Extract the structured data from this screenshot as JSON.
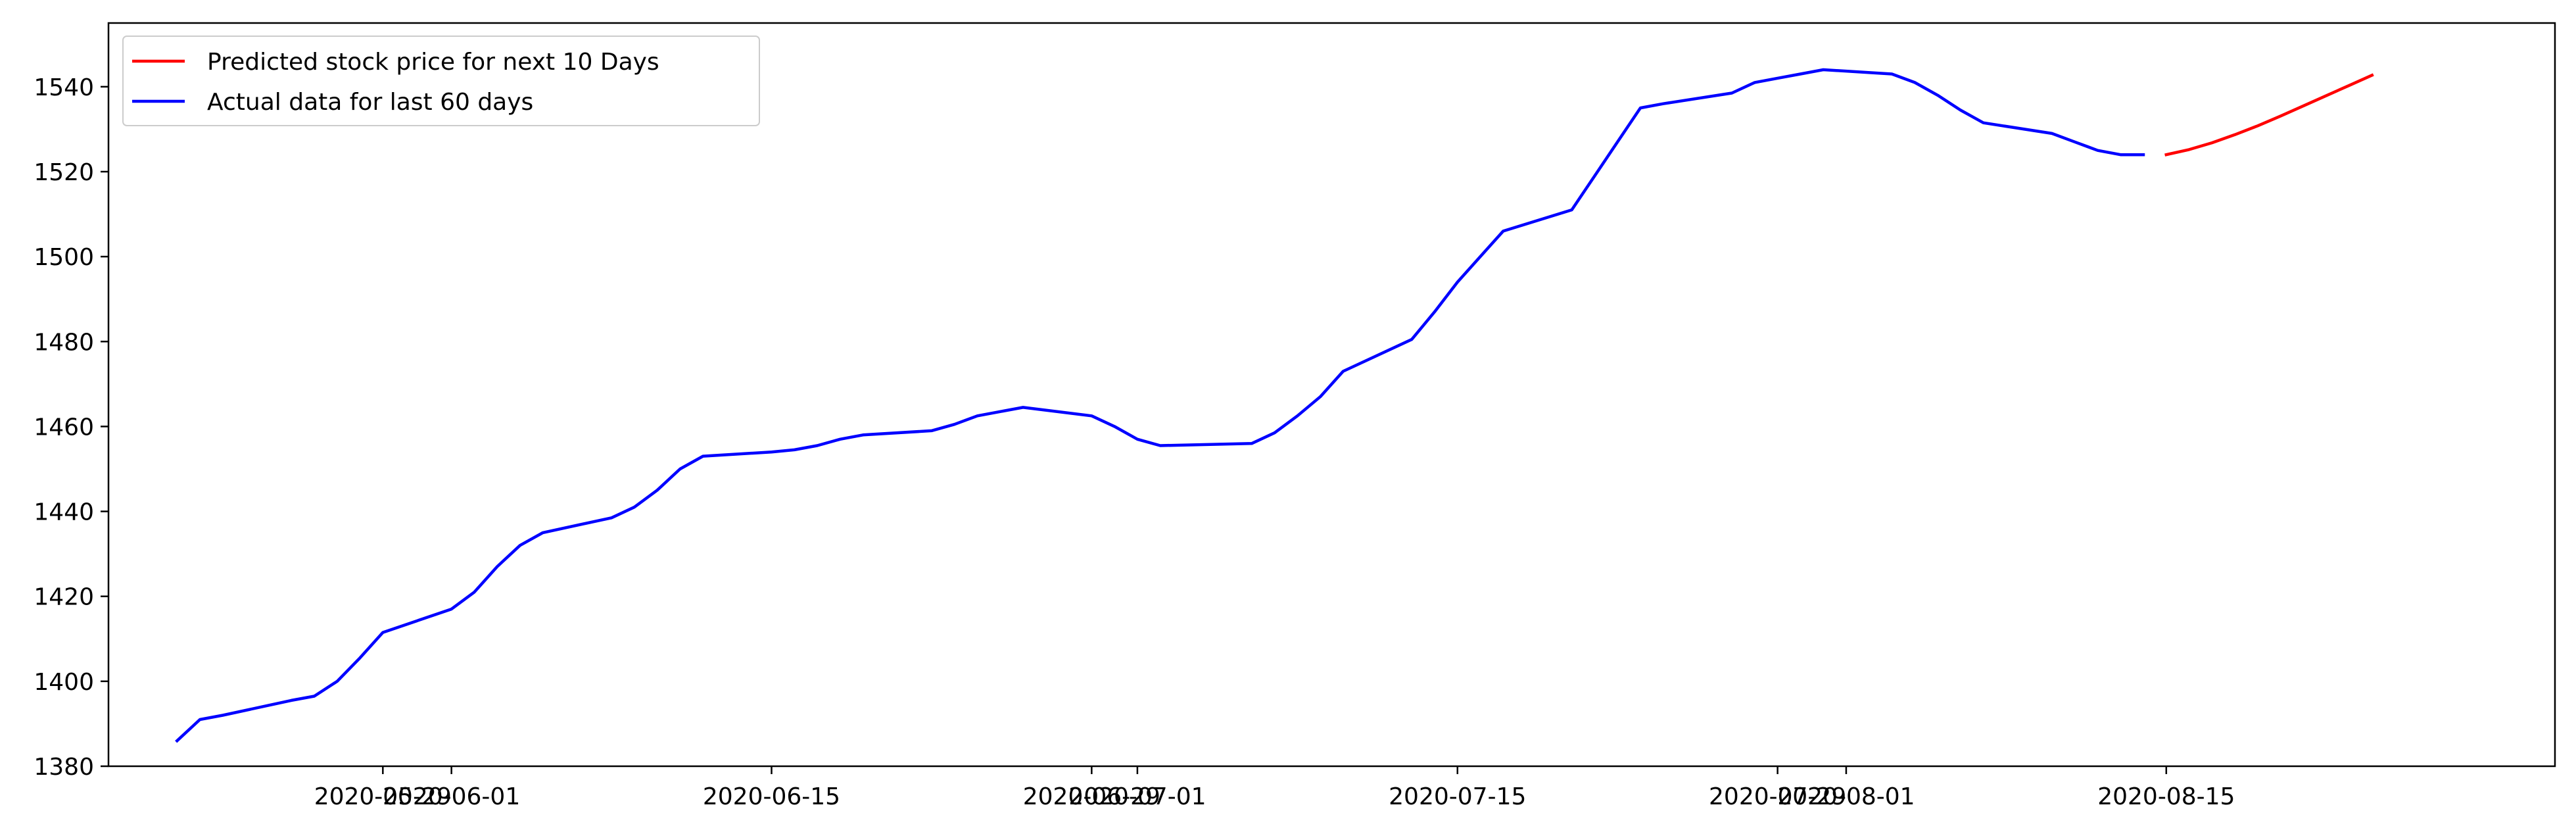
{
  "chart_data": {
    "type": "line",
    "title": "",
    "xlabel": "",
    "ylabel": "",
    "x_axis_type": "date",
    "xlim": [
      "2020-05-17",
      "2020-09-01"
    ],
    "ylim": [
      1380,
      1555
    ],
    "x_tick_labels": [
      "2020-05-29",
      "2020-06-01",
      "2020-06-15",
      "2020-06-29",
      "2020-07-01",
      "2020-07-15",
      "2020-07-29",
      "2020-08-01",
      "2020-08-15"
    ],
    "y_ticks": [
      1380,
      1400,
      1420,
      1440,
      1460,
      1480,
      1500,
      1520,
      1540
    ],
    "grid": false,
    "legend": {
      "placement": "upper left",
      "entries": [
        "Predicted stock price for next 10 Days",
        "Actual data for last 60 days"
      ]
    },
    "series": [
      {
        "name": "Predicted stock price for next 10 Days",
        "color": "#ff0000",
        "x": [
          "2020-08-15",
          "2020-08-16",
          "2020-08-17",
          "2020-08-18",
          "2020-08-19",
          "2020-08-20",
          "2020-08-21",
          "2020-08-22",
          "2020-08-23",
          "2020-08-24"
        ],
        "y": [
          1524,
          1525.2,
          1526.8,
          1528.7,
          1530.8,
          1533.1,
          1535.5,
          1537.9,
          1540.3,
          1542.7
        ]
      },
      {
        "name": "Actual data for last 60 days",
        "color": "#0000ff",
        "x": [
          "2020-05-20",
          "2020-05-21",
          "2020-05-22",
          "2020-05-25",
          "2020-05-26",
          "2020-05-27",
          "2020-05-28",
          "2020-05-29",
          "2020-06-01",
          "2020-06-02",
          "2020-06-03",
          "2020-06-04",
          "2020-06-05",
          "2020-06-08",
          "2020-06-09",
          "2020-06-10",
          "2020-06-11",
          "2020-06-12",
          "2020-06-15",
          "2020-06-16",
          "2020-06-17",
          "2020-06-18",
          "2020-06-19",
          "2020-06-22",
          "2020-06-23",
          "2020-06-24",
          "2020-06-25",
          "2020-06-26",
          "2020-06-29",
          "2020-06-30",
          "2020-07-01",
          "2020-07-02",
          "2020-07-06",
          "2020-07-07",
          "2020-07-08",
          "2020-07-09",
          "2020-07-10",
          "2020-07-13",
          "2020-07-14",
          "2020-07-15",
          "2020-07-16",
          "2020-07-17",
          "2020-07-20",
          "2020-07-21",
          "2020-07-22",
          "2020-07-23",
          "2020-07-24",
          "2020-07-27",
          "2020-07-28",
          "2020-07-29",
          "2020-07-30",
          "2020-07-31",
          "2020-08-03",
          "2020-08-04",
          "2020-08-05",
          "2020-08-06",
          "2020-08-07",
          "2020-08-10",
          "2020-08-11",
          "2020-08-12",
          "2020-08-13",
          "2020-08-14"
        ],
        "y": [
          1386,
          1391,
          1392,
          1395.5,
          1396.5,
          1400,
          1405.5,
          1411.5,
          1417,
          1421,
          1427,
          1432,
          1435,
          1438.5,
          1441,
          1445,
          1450,
          1453,
          1454,
          1454.5,
          1455.5,
          1457,
          1458,
          1459,
          1460.5,
          1462.5,
          1463.5,
          1464.5,
          1462.5,
          1460,
          1457,
          1455.5,
          1456,
          1458.5,
          1462.5,
          1467,
          1473,
          1480.5,
          1487,
          1494,
          1500,
          1506,
          1511,
          1519,
          1527,
          1535,
          1536,
          1538.5,
          1541,
          1542,
          1543,
          1544,
          1543,
          1541,
          1538,
          1534.5,
          1531.5,
          1529,
          1527,
          1525,
          1524,
          1524
        ]
      }
    ]
  }
}
